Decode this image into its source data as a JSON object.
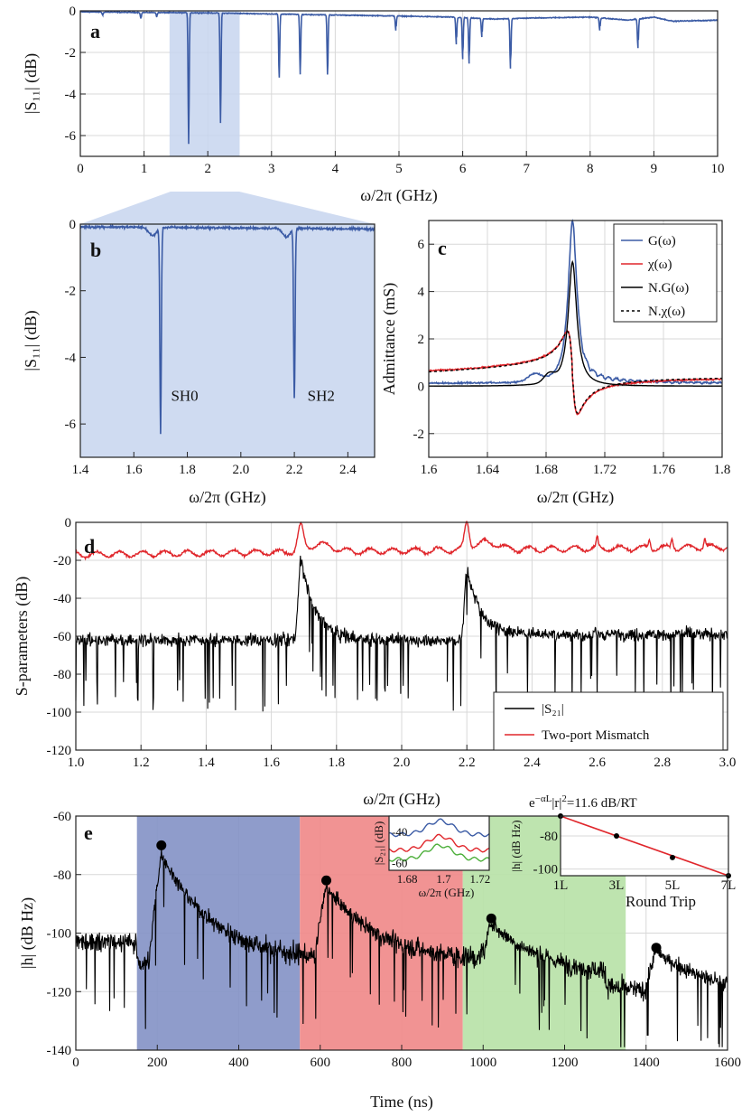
{
  "colors": {
    "blue_trace": "#3b5ba5",
    "red_trace": "#e0262b",
    "black_trace": "#000000",
    "band_blue": "#c7d5ee",
    "region_blue": "#8594c7",
    "region_red": "#f08a8a",
    "region_green": "#b9e2a8",
    "green_trace": "#4caf3a"
  },
  "chart_data": [
    {
      "id": "a",
      "type": "line",
      "panel_label": "a",
      "xlabel": "ω/2π (GHz)",
      "ylabel": "|S₁₁| (dB)",
      "xlim": [
        0,
        10
      ],
      "ylim": [
        -7,
        0
      ],
      "xticks": [
        "0",
        "1",
        "2",
        "3",
        "4",
        "5",
        "6",
        "7",
        "8",
        "9",
        "10"
      ],
      "yticks": [
        "0",
        "-2",
        "-4",
        "-6"
      ],
      "highlight_band_x": [
        1.4,
        2.5
      ],
      "series": [
        {
          "baseline": [
            [
              0,
              -0.05
            ],
            [
              1,
              -0.08
            ],
            [
              2,
              -0.1
            ],
            [
              3,
              -0.15
            ],
            [
              4,
              -0.2
            ],
            [
              5,
              -0.25
            ],
            [
              5.8,
              -0.3
            ],
            [
              6.5,
              -0.4
            ],
            [
              7,
              -0.35
            ],
            [
              8,
              -0.3
            ],
            [
              8.6,
              -0.45
            ],
            [
              9,
              -0.3
            ],
            [
              9.3,
              -0.5
            ],
            [
              10,
              -0.45
            ]
          ],
          "dips": [
            [
              0.35,
              -0.15
            ],
            [
              0.95,
              -0.3
            ],
            [
              1.2,
              -0.2
            ],
            [
              1.7,
              -6.3
            ],
            [
              2.2,
              -5.3
            ],
            [
              3.12,
              -3.1
            ],
            [
              3.45,
              -2.9
            ],
            [
              3.88,
              -2.9
            ],
            [
              4.95,
              -0.7
            ],
            [
              5.9,
              -1.3
            ],
            [
              6.0,
              -2.0
            ],
            [
              6.1,
              -2.2
            ],
            [
              6.3,
              -0.9
            ],
            [
              6.75,
              -2.4
            ],
            [
              8.15,
              -0.6
            ],
            [
              8.75,
              -1.4
            ]
          ]
        }
      ]
    },
    {
      "id": "b",
      "type": "line",
      "panel_label": "b",
      "xlabel": "ω/2π (GHz)",
      "ylabel": "|S₁₁| (dB)",
      "xlim": [
        1.4,
        2.5
      ],
      "ylim": [
        -7,
        0
      ],
      "xticks": [
        "1.4",
        "1.6",
        "1.8",
        "2.0",
        "2.2",
        "2.4"
      ],
      "yticks": [
        "0",
        "-2",
        "-4",
        "-6"
      ],
      "annotations": [
        {
          "text": "SH0",
          "x": 1.79,
          "y": -5.3
        },
        {
          "text": "SH2",
          "x": 2.3,
          "y": -5.3
        }
      ],
      "dips": [
        [
          1.62,
          -0.15
        ],
        [
          1.7,
          -6.3
        ],
        [
          1.78,
          -0.2
        ],
        [
          2.12,
          -0.15
        ],
        [
          2.2,
          -5.2
        ],
        [
          2.3,
          -0.2
        ]
      ]
    },
    {
      "id": "c",
      "type": "line",
      "panel_label": "c",
      "xlabel": "ω/2π (GHz)",
      "ylabel": "Admittance (mS)",
      "xlim": [
        1.6,
        1.8
      ],
      "ylim": [
        -3,
        7
      ],
      "xticks": [
        "1.6",
        "1.64",
        "1.68",
        "1.72",
        "1.76",
        "1.8"
      ],
      "yticks": [
        "6",
        "4",
        "2",
        "0",
        "-2"
      ],
      "legend": [
        "G(ω)",
        "χ(ω)",
        "N.G(ω)",
        "N.χ(ω)"
      ],
      "resonance_ghz": 1.698
    },
    {
      "id": "d",
      "type": "line",
      "panel_label": "d",
      "xlabel": "ω/2π (GHz)",
      "ylabel": "S-parameters (dB)",
      "xlim": [
        1.0,
        3.0
      ],
      "ylim": [
        -120,
        0
      ],
      "xticks": [
        "1.0",
        "1.2",
        "1.4",
        "1.6",
        "1.8",
        "2.0",
        "2.2",
        "2.4",
        "2.6",
        "2.8",
        "3.0"
      ],
      "yticks": [
        "0",
        "-20",
        "-40",
        "-60",
        "-80",
        "-100",
        "-120"
      ],
      "legend": [
        "|S₂₁|",
        "Two-port Mismatch"
      ],
      "peaks_red": [
        [
          1.69,
          -3
        ],
        [
          2.2,
          -2
        ]
      ],
      "peaks_black": [
        [
          1.69,
          -16
        ],
        [
          2.2,
          -22
        ]
      ]
    },
    {
      "id": "e",
      "type": "line",
      "panel_label": "e",
      "xlabel": "Time (ns)",
      "ylabel": "|h| (dB Hz)",
      "xlim": [
        0,
        1600
      ],
      "ylim": [
        -140,
        -60
      ],
      "xticks": [
        "0",
        "200",
        "400",
        "600",
        "800",
        "1000",
        "1200",
        "1400",
        "1600"
      ],
      "yticks": [
        "-60",
        "-80",
        "-100",
        "-120",
        "-140"
      ],
      "regions": [
        [
          150,
          550
        ],
        [
          550,
          950
        ],
        [
          950,
          1350
        ]
      ],
      "peak_markers": [
        [
          210,
          -70
        ],
        [
          615,
          -82
        ],
        [
          1020,
          -95
        ],
        [
          1425,
          -105
        ]
      ],
      "inset_left": {
        "xlabel": "ω/2π (GHz)",
        "ylabel": "|S₂₁| (dB)",
        "xticks": [
          "1.68",
          "1.7",
          "1.72"
        ],
        "yticks": [
          "-40",
          "-60"
        ]
      },
      "inset_right": {
        "title": "e^{-αL}|r|²=11.6 dB/RT",
        "title_prefix": "e",
        "title_sup": "−αL",
        "title_mid": "|r|",
        "title_sup2": "2",
        "title_suffix": "=11.6 dB/RT",
        "xlabel": "Round Trip",
        "ylabel": "|h| (dB Hz)",
        "xticks": [
          "1L",
          "3L",
          "5L",
          "7L"
        ],
        "yticks": [
          "-80",
          "-100"
        ],
        "points": [
          [
            1,
            -68
          ],
          [
            3,
            -80
          ],
          [
            5,
            -93
          ],
          [
            7,
            -104
          ]
        ]
      }
    }
  ]
}
